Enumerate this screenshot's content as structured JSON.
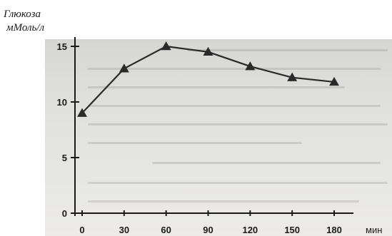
{
  "chart_data": {
    "type": "line",
    "title": "",
    "ylabel": [
      "Глюкоза",
      "мМоль/л"
    ],
    "xlabel": "мин",
    "x": [
      0,
      30,
      60,
      90,
      120,
      150,
      180
    ],
    "series": [
      {
        "values": [
          9,
          13,
          15,
          14.5,
          13.2,
          12.2,
          11.8
        ]
      }
    ],
    "xlim": [
      0,
      180
    ],
    "ylim": [
      0,
      15
    ],
    "x_ticks": [
      "0",
      "30",
      "60",
      "90",
      "120",
      "150",
      "180"
    ],
    "y_ticks": [
      "0",
      "5",
      "10",
      "15"
    ],
    "grid": false,
    "legend": "none",
    "colors": {
      "line": "#2a2a2a",
      "axis": "#1a1a1a",
      "marker": "#2a2a2a"
    }
  }
}
